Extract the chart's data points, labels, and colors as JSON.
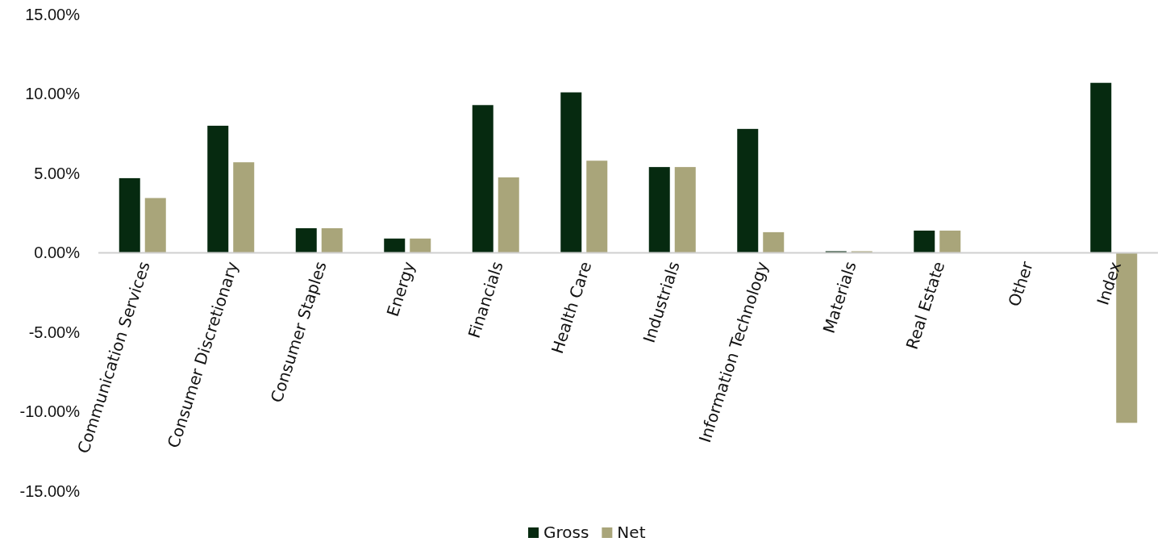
{
  "chart_data": {
    "type": "bar",
    "categories": [
      "Communication Services",
      "Consumer Discretionary",
      "Consumer Staples",
      "Energy",
      "Financials",
      "Health Care",
      "Industrials",
      "Information Technology",
      "Materials",
      "Real Estate",
      "Other",
      "Index"
    ],
    "series": [
      {
        "name": "Gross",
        "color": "#062a10",
        "values": [
          4.7,
          8.0,
          1.55,
          0.9,
          9.3,
          10.1,
          5.4,
          7.8,
          0.1,
          1.4,
          0,
          10.7
        ]
      },
      {
        "name": "Net",
        "color": "#a9a57a",
        "values": [
          3.45,
          5.7,
          1.55,
          0.9,
          4.75,
          5.8,
          5.4,
          1.3,
          0.1,
          1.4,
          0,
          -10.7
        ]
      }
    ],
    "ylim": [
      -15,
      15
    ],
    "yticks": [
      {
        "value": -15,
        "label": "-15.00%"
      },
      {
        "value": -10,
        "label": "-10.00%"
      },
      {
        "value": -5,
        "label": "-5.00%"
      },
      {
        "value": 0,
        "label": "0.00%"
      },
      {
        "value": 5,
        "label": "5.00%"
      },
      {
        "value": 10,
        "label": "10.00%"
      },
      {
        "value": 15,
        "label": "15.00%"
      }
    ],
    "legend": "bottom"
  }
}
